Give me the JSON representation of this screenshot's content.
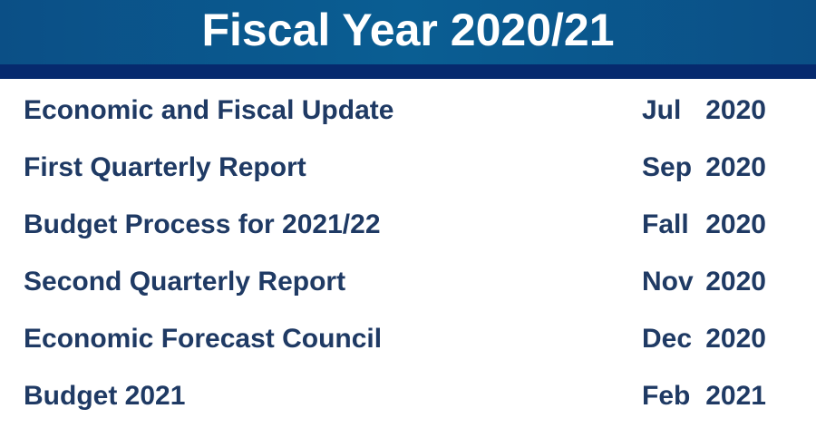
{
  "header": {
    "title": "Fiscal Year 2020/21",
    "background_color": "#0a5a8e",
    "band_color": "#062a6e"
  },
  "text_color": "#1f3a64",
  "schedule": [
    {
      "label": "Economic and Fiscal Update",
      "month": "Jul",
      "year": "2020"
    },
    {
      "label": "First Quarterly Report",
      "month": "Sep",
      "year": "2020"
    },
    {
      "label": "Budget Process for 2021/22",
      "month": "Fall",
      "year": "2020"
    },
    {
      "label": "Second Quarterly Report",
      "month": "Nov",
      "year": "2020"
    },
    {
      "label": "Economic Forecast Council",
      "month": "Dec",
      "year": "2020"
    },
    {
      "label": "Budget 2021",
      "month": "Feb",
      "year": "2021"
    }
  ]
}
